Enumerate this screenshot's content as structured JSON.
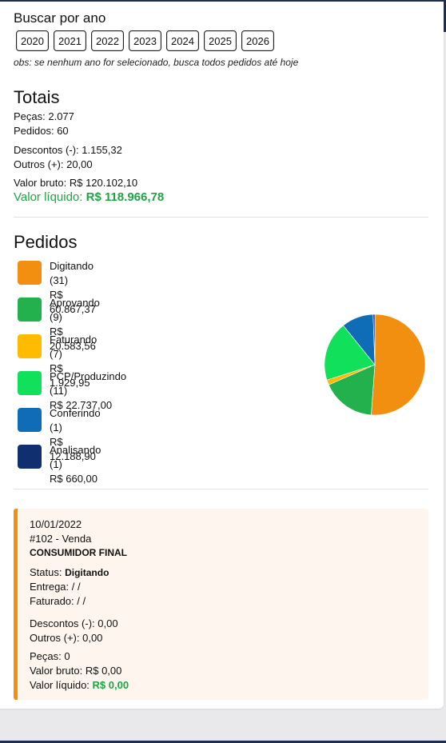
{
  "search": {
    "title": "Buscar por ano",
    "years": [
      "2020",
      "2021",
      "2022",
      "2023",
      "2024",
      "2025",
      "2026"
    ],
    "note": "obs: se nenhum ano for selecionado, busca todos pedidos até hoje"
  },
  "totais": {
    "title": "Totais",
    "pecas": "Peças: 2.077",
    "pedidos": "Pedidos: 60",
    "descontos": "Descontos (-): 1.155,32",
    "outros": "Outros (+): 20,00",
    "valor_bruto": "Valor bruto: R$ 120.102,10",
    "valor_liquido_label": "Valor líquido: ",
    "valor_liquido_value": "R$ 118.966,78"
  },
  "pedidos": {
    "title": "Pedidos",
    "statuses": [
      {
        "label": "Digitando (31)",
        "value_text": "R$ 60.867,37",
        "color": "#f28f10"
      },
      {
        "label": "Aprovando (9)",
        "value_text": "R$ 20.583,56",
        "color": "#22b14c"
      },
      {
        "label": "Faturando (7)",
        "value_text": "R$ 1.929,95",
        "color": "#ffbb00"
      },
      {
        "label": "PCP/Produzindo (11)",
        "value_text": "R$ 22.737,00",
        "color": "#11e05a"
      },
      {
        "label": "Conferindo (1)",
        "value_text": "R$ 12.188,90",
        "color": "#0f6db8"
      },
      {
        "label": "Analisando (1)",
        "value_text": "R$ 660,00",
        "color": "#0f2f6e"
      }
    ]
  },
  "chart_data": {
    "type": "pie",
    "categories": [
      "Digitando (31)",
      "Aprovando (9)",
      "Faturando (7)",
      "PCP/Produzindo (11)",
      "Conferindo (1)",
      "Analisando (1)"
    ],
    "values": [
      60867.37,
      20583.56,
      1929.95,
      22737.0,
      12188.9,
      660.0
    ],
    "colors": [
      "#f28f10",
      "#22b14c",
      "#ffbb00",
      "#11e05a",
      "#0f6db8",
      "#0f2f6e"
    ],
    "legend": "left"
  },
  "order": {
    "date": "10/01/2022",
    "number": "#102 - Venda",
    "customer": "CONSUMIDOR FINAL",
    "status_label": "Status: ",
    "status_value": "Digitando",
    "entrega": "Entrega: /  /",
    "faturado": "Faturado: /  /",
    "descontos": "Descontos (-): 0,00",
    "outros": "Outros (+): 0,00",
    "pecas": "Peças: 0",
    "valor_bruto": "Valor bruto: R$ 0,00",
    "valor_liquido_label": "Valor líquido: ",
    "valor_liquido_value": "R$ 0,00"
  }
}
